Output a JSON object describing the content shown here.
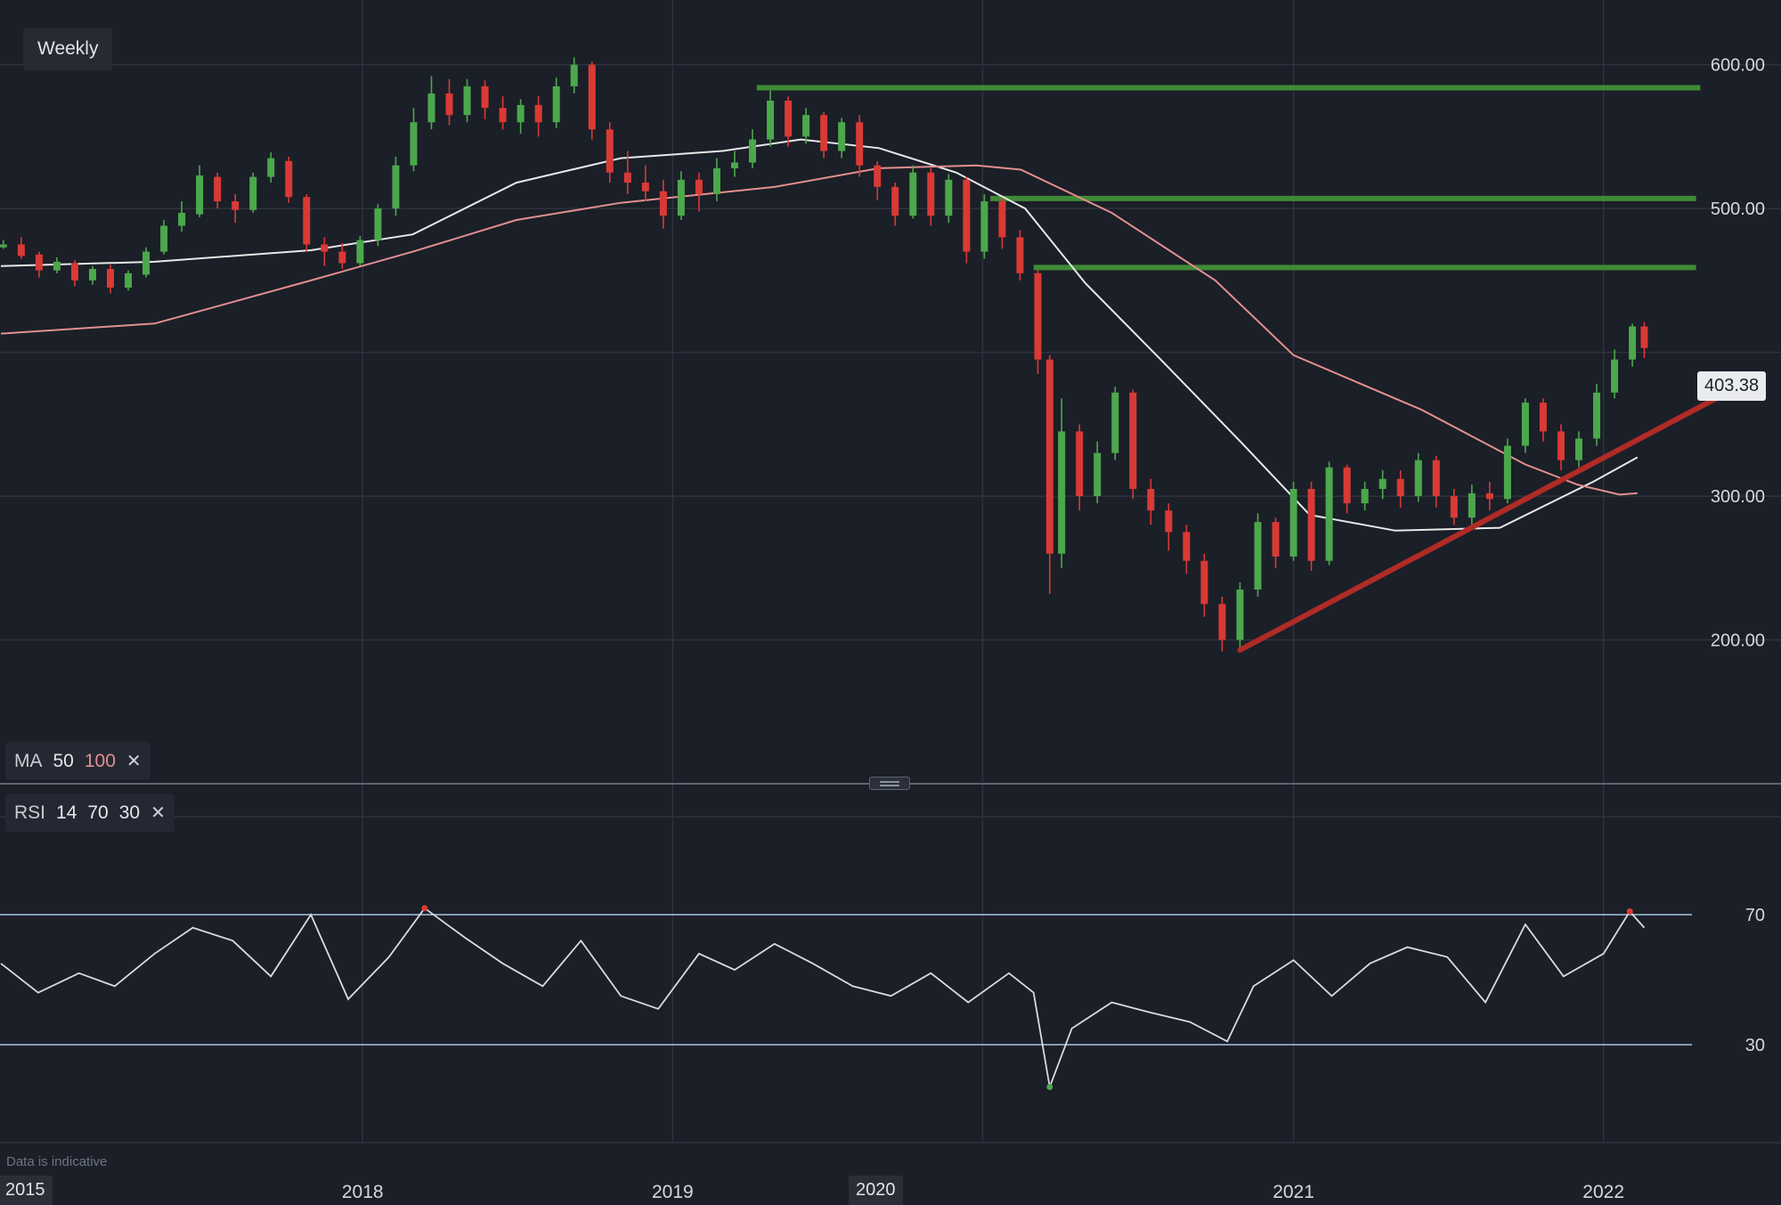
{
  "header": {
    "timeframe_label": "Weekly"
  },
  "indicators": {
    "ma": {
      "label": "MA",
      "fast": "50",
      "slow": "100",
      "remove_icon": "✕"
    },
    "rsi": {
      "label": "RSI",
      "period": "14",
      "upper": "70",
      "lower": "30",
      "remove_icon": "✕"
    }
  },
  "footer": {
    "disclaimer": "Data is indicative",
    "start_label": "2015",
    "highlighted_date": "2020"
  },
  "colors": {
    "background": "#1b1f28",
    "grid": "#2e333d",
    "up": "#4ca84c",
    "down": "#d93a35",
    "ma50": "#e8e8e8",
    "ma100": "#e38f8f",
    "resistance": "#3f8a36",
    "trendline": "#b02b26",
    "rsi_line": "#d8dbe0",
    "rsi_bands": "#a8c4e0",
    "rsi_oversold": "#4ca84c",
    "rsi_overbought": "#d93a35"
  },
  "chart_data": [
    {
      "type": "candlestick",
      "interval": "weekly",
      "last_price": "403.38",
      "x_ticks": [
        "2018",
        "2019",
        "2020",
        "2021",
        "2022"
      ],
      "y_ticks": [
        "600.00",
        "500.00",
        "300.00",
        "200.00"
      ],
      "ylim": [
        100,
        645
      ],
      "xlim": [
        "2016-10-31",
        "2022-07-29"
      ],
      "resistance_levels": [
        {
          "start": "2019-04-10",
          "end": "2022-04-25",
          "price": 584
        },
        {
          "start": "2020-01-10",
          "end": "2022-04-20",
          "price": 507
        },
        {
          "start": "2020-03-01",
          "end": "2022-04-20",
          "price": 459
        }
      ],
      "trendline": {
        "start": [
          "2020-10-30",
          193
        ],
        "end": [
          "2022-05-20",
          370
        ]
      },
      "ma_series": [
        {
          "name": "50",
          "points": [
            [
              "2016-11-01",
              460
            ],
            [
              "2017-05-01",
              463
            ],
            [
              "2017-11-01",
              471
            ],
            [
              "2018-03-01",
              482
            ],
            [
              "2018-07-01",
              518
            ],
            [
              "2018-11-01",
              535
            ],
            [
              "2019-03-01",
              540
            ],
            [
              "2019-06-01",
              548
            ],
            [
              "2019-09-01",
              542
            ],
            [
              "2019-12-01",
              525
            ],
            [
              "2020-02-20",
              500
            ],
            [
              "2020-05-01",
              448
            ],
            [
              "2020-08-01",
              393
            ],
            [
              "2020-11-01",
              337
            ],
            [
              "2021-01-20",
              287
            ],
            [
              "2021-05-01",
              276
            ],
            [
              "2021-09-01",
              278
            ],
            [
              "2021-12-20",
              310
            ],
            [
              "2022-02-10",
              327
            ]
          ]
        },
        {
          "name": "100",
          "points": [
            [
              "2016-11-01",
              413
            ],
            [
              "2017-05-01",
              420
            ],
            [
              "2017-11-01",
              450
            ],
            [
              "2018-03-01",
              470
            ],
            [
              "2018-07-01",
              492
            ],
            [
              "2018-11-01",
              504
            ],
            [
              "2019-05-01",
              515
            ],
            [
              "2019-09-01",
              528
            ],
            [
              "2019-12-25",
              530
            ],
            [
              "2020-02-15",
              527
            ],
            [
              "2020-06-01",
              497
            ],
            [
              "2020-10-01",
              450
            ],
            [
              "2021-01-01",
              398
            ],
            [
              "2021-06-01",
              360
            ],
            [
              "2021-10-01",
              322
            ],
            [
              "2021-12-01",
              308
            ],
            [
              "2022-01-20",
              301
            ],
            [
              "2022-02-10",
              302
            ]
          ]
        }
      ],
      "candles": [
        [
          "2016-11-04",
          473,
          475,
          472,
          478
        ],
        [
          "2016-11-25",
          475,
          467,
          465,
          480
        ],
        [
          "2016-12-16",
          468,
          457,
          452,
          470
        ],
        [
          "2017-01-06",
          457,
          463,
          455,
          466
        ],
        [
          "2017-01-27",
          462,
          450,
          446,
          464
        ],
        [
          "2017-02-17",
          450,
          458,
          447,
          460
        ],
        [
          "2017-03-10",
          458,
          445,
          441,
          461
        ],
        [
          "2017-03-31",
          445,
          455,
          443,
          457
        ],
        [
          "2017-04-21",
          454,
          470,
          452,
          473
        ],
        [
          "2017-05-12",
          470,
          488,
          468,
          492
        ],
        [
          "2017-06-02",
          488,
          497,
          484,
          505
        ],
        [
          "2017-06-23",
          496,
          523,
          494,
          530
        ],
        [
          "2017-07-14",
          522,
          505,
          500,
          525
        ],
        [
          "2017-08-04",
          505,
          499,
          490,
          510
        ],
        [
          "2017-08-25",
          499,
          522,
          497,
          525
        ],
        [
          "2017-09-15",
          522,
          535,
          518,
          539
        ],
        [
          "2017-10-06",
          533,
          508,
          504,
          536
        ],
        [
          "2017-10-27",
          508,
          475,
          470,
          510
        ],
        [
          "2017-11-17",
          475,
          470,
          460,
          480
        ],
        [
          "2017-12-08",
          470,
          462,
          458,
          476
        ],
        [
          "2017-12-29",
          462,
          478,
          460,
          481
        ],
        [
          "2018-01-19",
          478,
          500,
          474,
          503
        ],
        [
          "2018-02-09",
          500,
          530,
          495,
          536
        ],
        [
          "2018-03-02",
          530,
          560,
          526,
          570
        ],
        [
          "2018-03-23",
          560,
          580,
          555,
          592
        ],
        [
          "2018-04-13",
          580,
          565,
          558,
          590
        ],
        [
          "2018-05-04",
          565,
          585,
          560,
          590
        ],
        [
          "2018-05-25",
          585,
          570,
          562,
          589
        ],
        [
          "2018-06-15",
          570,
          560,
          555,
          578
        ],
        [
          "2018-07-06",
          560,
          572,
          552,
          576
        ],
        [
          "2018-07-27",
          572,
          560,
          550,
          578
        ],
        [
          "2018-08-17",
          560,
          585,
          556,
          591
        ],
        [
          "2018-09-07",
          585,
          600,
          580,
          605
        ],
        [
          "2018-09-28",
          600,
          555,
          548,
          602
        ],
        [
          "2018-10-19",
          555,
          525,
          518,
          560
        ],
        [
          "2018-11-09",
          525,
          518,
          510,
          540
        ],
        [
          "2018-11-30",
          518,
          512,
          505,
          530
        ],
        [
          "2018-12-21",
          512,
          495,
          486,
          520
        ],
        [
          "2019-01-11",
          495,
          520,
          492,
          526
        ],
        [
          "2019-02-01",
          520,
          510,
          498,
          525
        ],
        [
          "2019-02-22",
          510,
          528,
          505,
          535
        ],
        [
          "2019-03-15",
          528,
          532,
          522,
          540
        ],
        [
          "2019-04-05",
          532,
          548,
          528,
          555
        ],
        [
          "2019-04-26",
          548,
          575,
          543,
          582
        ],
        [
          "2019-05-17",
          575,
          550,
          543,
          578
        ],
        [
          "2019-06-07",
          550,
          565,
          545,
          570
        ],
        [
          "2019-06-28",
          565,
          540,
          535,
          567
        ],
        [
          "2019-07-19",
          540,
          560,
          535,
          563
        ],
        [
          "2019-08-09",
          560,
          530,
          522,
          565
        ],
        [
          "2019-08-30",
          530,
          515,
          506,
          533
        ],
        [
          "2019-09-20",
          515,
          495,
          488,
          518
        ],
        [
          "2019-10-11",
          495,
          525,
          493,
          530
        ],
        [
          "2019-11-01",
          525,
          495,
          488,
          528
        ],
        [
          "2019-11-22",
          495,
          520,
          490,
          524
        ],
        [
          "2019-12-13",
          520,
          470,
          462,
          522
        ],
        [
          "2020-01-03",
          470,
          505,
          465,
          510
        ],
        [
          "2020-01-24",
          505,
          480,
          472,
          507
        ],
        [
          "2020-02-14",
          480,
          455,
          450,
          485
        ],
        [
          "2020-03-06",
          455,
          395,
          385,
          457
        ],
        [
          "2020-03-20",
          395,
          260,
          232,
          398
        ],
        [
          "2020-04-03",
          260,
          345,
          250,
          368
        ],
        [
          "2020-04-24",
          345,
          300,
          290,
          350
        ],
        [
          "2020-05-15",
          300,
          330,
          295,
          338
        ],
        [
          "2020-06-05",
          330,
          372,
          325,
          376
        ],
        [
          "2020-06-26",
          372,
          305,
          298,
          374
        ],
        [
          "2020-07-17",
          305,
          290,
          280,
          312
        ],
        [
          "2020-08-07",
          290,
          275,
          262,
          295
        ],
        [
          "2020-08-28",
          275,
          255,
          246,
          280
        ],
        [
          "2020-09-18",
          255,
          225,
          216,
          260
        ],
        [
          "2020-10-09",
          225,
          200,
          192,
          230
        ],
        [
          "2020-10-30",
          200,
          235,
          195,
          240
        ],
        [
          "2020-11-20",
          235,
          282,
          230,
          288
        ],
        [
          "2020-12-11",
          282,
          258,
          250,
          285
        ],
        [
          "2021-01-01",
          258,
          305,
          255,
          310
        ],
        [
          "2021-01-22",
          305,
          255,
          248,
          310
        ],
        [
          "2021-02-12",
          255,
          320,
          252,
          324
        ],
        [
          "2021-03-05",
          320,
          295,
          288,
          322
        ],
        [
          "2021-03-26",
          295,
          305,
          290,
          310
        ],
        [
          "2021-04-16",
          305,
          312,
          298,
          318
        ],
        [
          "2021-05-07",
          312,
          300,
          292,
          318
        ],
        [
          "2021-05-28",
          300,
          325,
          296,
          330
        ],
        [
          "2021-06-18",
          325,
          300,
          292,
          328
        ],
        [
          "2021-07-09",
          300,
          285,
          280,
          305
        ],
        [
          "2021-07-30",
          285,
          302,
          280,
          308
        ],
        [
          "2021-08-20",
          302,
          298,
          290,
          310
        ],
        [
          "2021-09-10",
          298,
          335,
          295,
          340
        ],
        [
          "2021-10-01",
          335,
          365,
          330,
          368
        ],
        [
          "2021-10-22",
          365,
          345,
          338,
          368
        ],
        [
          "2021-11-12",
          345,
          325,
          318,
          350
        ],
        [
          "2021-12-03",
          325,
          340,
          320,
          345
        ],
        [
          "2021-12-24",
          340,
          372,
          335,
          378
        ],
        [
          "2022-01-14",
          372,
          395,
          368,
          402
        ],
        [
          "2022-02-04",
          395,
          418,
          390,
          420
        ],
        [
          "2022-02-18",
          418,
          403,
          396,
          421
        ]
      ]
    },
    {
      "type": "line",
      "name": "RSI",
      "y_ticks": [
        "70",
        "30"
      ],
      "bands": [
        30,
        70
      ],
      "ylim": [
        0,
        100
      ],
      "x": [
        "2016-11-01",
        "2016-12-15",
        "2017-02-01",
        "2017-03-15",
        "2017-05-01",
        "2017-06-15",
        "2017-08-01",
        "2017-09-15",
        "2017-11-01",
        "2017-12-15",
        "2018-02-01",
        "2018-03-15",
        "2018-05-01",
        "2018-06-15",
        "2018-08-01",
        "2018-09-15",
        "2018-11-01",
        "2018-12-15",
        "2019-02-01",
        "2019-03-15",
        "2019-05-01",
        "2019-06-15",
        "2019-08-01",
        "2019-09-15",
        "2019-11-01",
        "2019-12-15",
        "2020-02-01",
        "2020-03-01",
        "2020-03-20",
        "2020-04-15",
        "2020-06-01",
        "2020-07-15",
        "2020-09-01",
        "2020-10-15",
        "2020-11-15",
        "2021-01-01",
        "2021-02-15",
        "2021-04-01",
        "2021-05-15",
        "2021-07-01",
        "2021-08-15",
        "2021-10-01",
        "2021-11-15",
        "2022-01-01",
        "2022-02-01",
        "2022-02-18"
      ],
      "values": [
        55,
        46,
        52,
        48,
        58,
        66,
        62,
        51,
        70,
        44,
        57,
        72,
        63,
        55,
        48,
        62,
        45,
        41,
        58,
        53,
        61,
        55,
        48,
        45,
        52,
        43,
        52,
        46,
        17,
        35,
        43,
        40,
        37,
        31,
        48,
        56,
        45,
        55,
        60,
        57,
        43,
        67,
        51,
        58,
        71,
        66
      ]
    }
  ]
}
